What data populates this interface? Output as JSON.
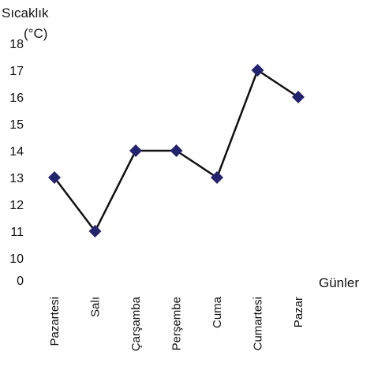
{
  "chart_data": {
    "type": "line",
    "ylabel_line1": "Sıcaklık",
    "ylabel_line2": "(°C)",
    "xlabel": "Günler",
    "categories": [
      "Pazartesi",
      "Salı",
      "Çarşamba",
      "Perşembe",
      "Cuma",
      "Cumartesi",
      "Pazar"
    ],
    "y_ticks": [
      "18",
      "17",
      "16",
      "15",
      "14",
      "13",
      "12",
      "11",
      "10",
      "0"
    ],
    "y_tick_values": [
      18,
      17,
      16,
      15,
      14,
      13,
      12,
      11,
      10
    ],
    "axis_break": "0 to 10",
    "series": [
      {
        "values": [
          13,
          11,
          14,
          14,
          13,
          17,
          16
        ]
      }
    ],
    "grid": false,
    "colors": {
      "line": "#111111",
      "marker": "#24246e"
    }
  }
}
